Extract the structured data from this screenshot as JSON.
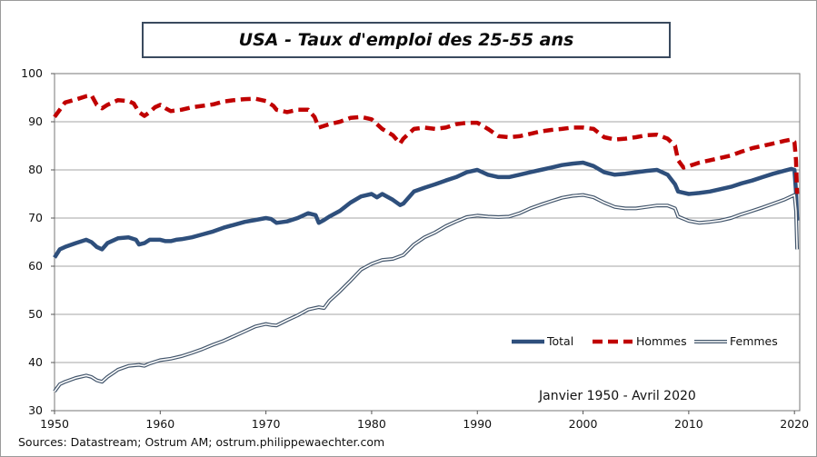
{
  "chart_data": {
    "type": "line",
    "title": "USA - Taux d'emploi des 25-55 ans",
    "xlabel": "",
    "ylabel": "",
    "xlim": [
      1950,
      2020.5
    ],
    "ylim": [
      30,
      100
    ],
    "x_ticks": [
      1950,
      1960,
      1970,
      1980,
      1990,
      2000,
      2010,
      2020
    ],
    "x_tick_labels": [
      "1950",
      "1960",
      "1970",
      "1980",
      "1990",
      "2000",
      "2010",
      "2020"
    ],
    "y_ticks": [
      30,
      40,
      50,
      60,
      70,
      80,
      90,
      100
    ],
    "y_tick_labels": [
      "30",
      "40",
      "50",
      "60",
      "70",
      "80",
      "90",
      "100"
    ],
    "grid": "horizontal",
    "legend_position": "bottom-right",
    "annotation": "Janvier 1950 - Avril 2020",
    "source": "Sources: Datastream; Ostrum AM; ostrum.philippewaechter.com",
    "series": [
      {
        "name": "Total",
        "style": "solid-thick",
        "color": "#2e4f7c",
        "x": [
          1950.0,
          1950.5,
          1951.0,
          1952.0,
          1953.0,
          1953.5,
          1954.0,
          1954.5,
          1955.0,
          1956.0,
          1957.0,
          1957.7,
          1958.0,
          1958.5,
          1959.0,
          1960.0,
          1960.5,
          1961.0,
          1961.5,
          1962.0,
          1963.0,
          1964.0,
          1965.0,
          1966.0,
          1967.0,
          1968.0,
          1969.0,
          1970.0,
          1970.5,
          1971.0,
          1972.0,
          1973.0,
          1974.0,
          1974.7,
          1975.0,
          1975.5,
          1976.0,
          1977.0,
          1978.0,
          1979.0,
          1980.0,
          1980.5,
          1981.0,
          1982.0,
          1982.7,
          1983.0,
          1984.0,
          1985.0,
          1986.0,
          1987.0,
          1988.0,
          1989.0,
          1990.0,
          1991.0,
          1992.0,
          1993.0,
          1994.0,
          1995.0,
          1996.0,
          1997.0,
          1998.0,
          1999.0,
          2000.0,
          2001.0,
          2002.0,
          2003.0,
          2004.0,
          2005.0,
          2006.0,
          2007.0,
          2008.0,
          2008.7,
          2009.0,
          2010.0,
          2011.0,
          2012.0,
          2013.0,
          2014.0,
          2015.0,
          2016.0,
          2017.0,
          2018.0,
          2019.0,
          2019.7,
          2020.0,
          2020.15,
          2020.25
        ],
        "y": [
          61.8,
          63.5,
          64.0,
          64.8,
          65.5,
          65.0,
          64.0,
          63.5,
          64.8,
          65.8,
          66.0,
          65.5,
          64.5,
          64.8,
          65.5,
          65.5,
          65.2,
          65.2,
          65.5,
          65.6,
          66.0,
          66.6,
          67.2,
          68.0,
          68.6,
          69.2,
          69.6,
          70.0,
          69.8,
          69.0,
          69.3,
          70.0,
          71.0,
          70.6,
          69.0,
          69.6,
          70.3,
          71.5,
          73.2,
          74.5,
          75.0,
          74.3,
          75.0,
          73.8,
          72.7,
          73.0,
          75.5,
          76.3,
          77.0,
          77.8,
          78.5,
          79.5,
          80.0,
          79.0,
          78.5,
          78.5,
          79.0,
          79.5,
          80.0,
          80.5,
          81.0,
          81.3,
          81.5,
          80.8,
          79.5,
          79.0,
          79.2,
          79.5,
          79.8,
          80.0,
          79.0,
          77.0,
          75.5,
          75.0,
          75.2,
          75.5,
          76.0,
          76.5,
          77.2,
          77.8,
          78.5,
          79.2,
          79.8,
          80.2,
          80.0,
          75.5,
          69.5
        ]
      },
      {
        "name": "Hommes",
        "style": "dashed-thick",
        "color": "#c00000",
        "x": [
          1950.0,
          1950.5,
          1951.0,
          1952.0,
          1953.0,
          1953.5,
          1954.0,
          1954.5,
          1955.0,
          1956.0,
          1957.0,
          1957.5,
          1958.0,
          1958.5,
          1959.0,
          1959.5,
          1960.0,
          1960.5,
          1961.0,
          1962.0,
          1963.0,
          1964.0,
          1965.0,
          1966.0,
          1967.0,
          1968.0,
          1969.0,
          1970.0,
          1970.7,
          1971.0,
          1972.0,
          1973.0,
          1974.0,
          1974.6,
          1975.0,
          1976.0,
          1977.0,
          1978.0,
          1979.0,
          1980.0,
          1980.5,
          1981.0,
          1982.0,
          1982.7,
          1983.0,
          1984.0,
          1985.0,
          1986.0,
          1987.0,
          1988.0,
          1989.0,
          1990.0,
          1991.0,
          1992.0,
          1993.0,
          1994.0,
          1995.0,
          1996.0,
          1997.0,
          1998.0,
          1999.0,
          2000.0,
          2001.0,
          2002.0,
          2003.0,
          2004.0,
          2005.0,
          2006.0,
          2007.0,
          2008.0,
          2008.7,
          2009.0,
          2009.5,
          2010.0,
          2011.0,
          2012.0,
          2013.0,
          2014.0,
          2015.0,
          2016.0,
          2017.0,
          2018.0,
          2019.0,
          2019.7,
          2020.0,
          2020.15,
          2020.25
        ],
        "y": [
          91.0,
          92.5,
          94.0,
          94.6,
          95.3,
          95.5,
          93.5,
          92.8,
          93.5,
          94.5,
          94.3,
          93.8,
          92.0,
          91.2,
          92.0,
          93.0,
          93.5,
          92.8,
          92.2,
          92.5,
          93.0,
          93.3,
          93.6,
          94.2,
          94.5,
          94.7,
          94.8,
          94.3,
          93.3,
          92.5,
          92.0,
          92.5,
          92.5,
          91.0,
          88.8,
          89.5,
          90.0,
          90.8,
          91.0,
          90.5,
          89.5,
          88.5,
          87.2,
          85.5,
          86.5,
          88.5,
          88.8,
          88.5,
          88.8,
          89.5,
          89.8,
          89.8,
          88.5,
          87.0,
          86.8,
          87.0,
          87.5,
          88.0,
          88.3,
          88.5,
          88.8,
          88.8,
          88.5,
          86.8,
          86.3,
          86.5,
          86.8,
          87.2,
          87.3,
          86.5,
          85.0,
          82.0,
          80.5,
          80.8,
          81.5,
          82.0,
          82.5,
          83.0,
          83.8,
          84.5,
          85.0,
          85.5,
          86.0,
          86.3,
          85.8,
          82.0,
          75.0
        ]
      },
      {
        "name": "Femmes",
        "style": "double-line",
        "color": "#43566c",
        "x": [
          1950.0,
          1950.5,
          1951.0,
          1952.0,
          1953.0,
          1953.5,
          1954.0,
          1954.5,
          1955.0,
          1956.0,
          1957.0,
          1958.0,
          1958.5,
          1959.0,
          1960.0,
          1961.0,
          1962.0,
          1963.0,
          1964.0,
          1965.0,
          1966.0,
          1967.0,
          1968.0,
          1969.0,
          1970.0,
          1970.5,
          1971.0,
          1972.0,
          1973.0,
          1974.0,
          1975.0,
          1975.5,
          1976.0,
          1977.0,
          1978.0,
          1979.0,
          1980.0,
          1981.0,
          1982.0,
          1983.0,
          1984.0,
          1985.0,
          1986.0,
          1987.0,
          1988.0,
          1989.0,
          1990.0,
          1991.0,
          1992.0,
          1993.0,
          1994.0,
          1995.0,
          1996.0,
          1997.0,
          1998.0,
          1999.0,
          2000.0,
          2001.0,
          2002.0,
          2003.0,
          2004.0,
          2005.0,
          2006.0,
          2007.0,
          2008.0,
          2008.7,
          2009.0,
          2010.0,
          2011.0,
          2012.0,
          2013.0,
          2014.0,
          2015.0,
          2016.0,
          2017.0,
          2018.0,
          2019.0,
          2019.7,
          2020.0,
          2020.15,
          2020.25
        ],
        "y": [
          34.0,
          35.5,
          36.0,
          36.8,
          37.3,
          37.0,
          36.3,
          36.0,
          37.0,
          38.5,
          39.3,
          39.5,
          39.3,
          39.8,
          40.5,
          40.8,
          41.3,
          42.0,
          42.8,
          43.7,
          44.5,
          45.5,
          46.5,
          47.5,
          48.0,
          47.8,
          47.7,
          48.8,
          49.8,
          51.0,
          51.5,
          51.3,
          52.8,
          54.8,
          57.0,
          59.3,
          60.5,
          61.3,
          61.5,
          62.3,
          64.5,
          66.0,
          67.0,
          68.3,
          69.3,
          70.2,
          70.5,
          70.3,
          70.2,
          70.3,
          71.0,
          72.0,
          72.8,
          73.5,
          74.2,
          74.6,
          74.8,
          74.3,
          73.2,
          72.3,
          72.0,
          72.0,
          72.3,
          72.6,
          72.6,
          72.0,
          70.3,
          69.4,
          69.0,
          69.2,
          69.5,
          70.0,
          70.8,
          71.5,
          72.2,
          73.0,
          73.8,
          74.5,
          74.8,
          71.5,
          63.5
        ]
      }
    ]
  }
}
